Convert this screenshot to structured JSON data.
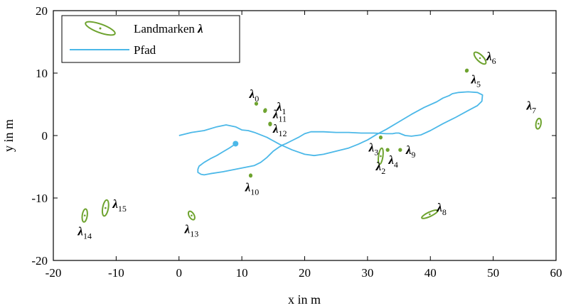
{
  "chart_data": {
    "type": "scatter",
    "xlabel": "x in m",
    "ylabel": "y in m",
    "xlim": [
      -20,
      60
    ],
    "ylim": [
      -20,
      20
    ],
    "x_ticks": [
      "-20",
      "-10",
      "0",
      "10",
      "20",
      "30",
      "40",
      "50",
      "60"
    ],
    "y_ticks": [
      "-20",
      "-10",
      "0",
      "10",
      "20"
    ],
    "grid": false,
    "legend_position": "top-left",
    "legend": {
      "landmarks": "Landmarken λ",
      "path": "Pfad"
    },
    "colors": {
      "landmarks": "#6ea32f",
      "path": "#4bb8e8"
    },
    "landmarks": [
      {
        "label": "λ",
        "sub": "0",
        "x": 12.3,
        "y": 5.1,
        "ellipse": [
          0.15,
          0.2,
          0
        ]
      },
      {
        "label": "λ",
        "sub": "1",
        "x": 13.7,
        "y": 4.0,
        "ellipse": [
          0.18,
          0.28,
          20
        ]
      },
      {
        "label": "λ",
        "sub": "2",
        "x": 32.1,
        "y": -3.3,
        "ellipse": [
          0.35,
          1.3,
          8
        ]
      },
      {
        "label": "λ",
        "sub": "3",
        "x": 32.1,
        "y": -0.3,
        "ellipse": [
          0.15,
          0.2,
          0
        ]
      },
      {
        "label": "λ",
        "sub": "4",
        "x": 33.2,
        "y": -2.3,
        "ellipse": [
          0.12,
          0.18,
          0
        ]
      },
      {
        "label": "λ",
        "sub": "5",
        "x": 45.8,
        "y": 10.4,
        "ellipse": [
          0.15,
          0.22,
          30
        ]
      },
      {
        "label": "λ",
        "sub": "6",
        "x": 47.9,
        "y": 12.4,
        "ellipse": [
          0.5,
          1.25,
          -45
        ]
      },
      {
        "label": "λ",
        "sub": "7",
        "x": 57.2,
        "y": 1.9,
        "ellipse": [
          0.4,
          0.85,
          10
        ]
      },
      {
        "label": "λ",
        "sub": "8",
        "x": 39.9,
        "y": -12.6,
        "ellipse": [
          1.4,
          0.35,
          -25
        ]
      },
      {
        "label": "λ",
        "sub": "9",
        "x": 35.2,
        "y": -2.3,
        "ellipse": [
          0.12,
          0.18,
          0
        ]
      },
      {
        "label": "λ",
        "sub": "10",
        "x": 11.4,
        "y": -6.4,
        "ellipse": [
          0.15,
          0.22,
          0
        ]
      },
      {
        "label": "λ",
        "sub": "11",
        "x": 14.5,
        "y": 1.9,
        "ellipse": [
          0.15,
          0.2,
          0
        ]
      },
      {
        "label": "λ",
        "sub": "12",
        "x": 14.5,
        "y": 1.8,
        "ellipse": [
          0.12,
          0.16,
          0
        ]
      },
      {
        "label": "λ",
        "sub": "13",
        "x": 2.0,
        "y": -12.8,
        "ellipse": [
          0.4,
          0.75,
          -30
        ]
      },
      {
        "label": "λ",
        "sub": "14",
        "x": -15.0,
        "y": -12.8,
        "ellipse": [
          0.4,
          1.05,
          8
        ]
      },
      {
        "label": "λ",
        "sub": "15",
        "x": -11.7,
        "y": -11.6,
        "ellipse": [
          0.45,
          1.3,
          10
        ]
      }
    ],
    "path": {
      "start_marker": {
        "x": 9.0,
        "y": -1.3
      },
      "points": [
        [
          0,
          0
        ],
        [
          2,
          0.5
        ],
        [
          4,
          0.8
        ],
        [
          6,
          1.4
        ],
        [
          7.5,
          1.7
        ],
        [
          9,
          1.4
        ],
        [
          10,
          0.9
        ],
        [
          11,
          0.8
        ],
        [
          12,
          0.5
        ],
        [
          14,
          -0.3
        ],
        [
          16,
          -1.4
        ],
        [
          18,
          -2.3
        ],
        [
          20,
          -3.0
        ],
        [
          21.5,
          -3.2
        ],
        [
          23,
          -3.0
        ],
        [
          25,
          -2.5
        ],
        [
          27,
          -2.0
        ],
        [
          28.5,
          -1.4
        ],
        [
          30,
          -0.7
        ],
        [
          31.5,
          0.2
        ],
        [
          33,
          1.0
        ],
        [
          35,
          2.2
        ],
        [
          37,
          3.4
        ],
        [
          39,
          4.5
        ],
        [
          41,
          5.4
        ],
        [
          42,
          6.0
        ],
        [
          43,
          6.4
        ],
        [
          43.5,
          6.7
        ],
        [
          44.5,
          6.9
        ],
        [
          46,
          7.0
        ],
        [
          47.5,
          6.9
        ],
        [
          48.3,
          6.5
        ],
        [
          48.2,
          5.5
        ],
        [
          47.5,
          4.8
        ],
        [
          46,
          4.0
        ],
        [
          44,
          2.9
        ],
        [
          42,
          1.9
        ],
        [
          40,
          0.8
        ],
        [
          38.5,
          0.1
        ],
        [
          37,
          -0.1
        ],
        [
          36,
          0.0
        ],
        [
          35,
          0.4
        ],
        [
          34.5,
          0.4
        ],
        [
          34,
          0.3
        ],
        [
          33,
          0.3
        ],
        [
          31,
          0.4
        ],
        [
          29,
          0.4
        ],
        [
          27,
          0.5
        ],
        [
          25,
          0.5
        ],
        [
          23,
          0.6
        ],
        [
          21,
          0.6
        ],
        [
          20,
          0.3
        ],
        [
          19,
          -0.3
        ],
        [
          18,
          -0.8
        ],
        [
          17,
          -1.3
        ],
        [
          16.5,
          -1.5
        ],
        [
          16,
          -1.8
        ],
        [
          15,
          -2.5
        ],
        [
          14,
          -3.5
        ],
        [
          13,
          -4.3
        ],
        [
          12,
          -4.8
        ],
        [
          11,
          -5.0
        ],
        [
          9,
          -5.4
        ],
        [
          7,
          -5.8
        ],
        [
          5,
          -6.1
        ],
        [
          4,
          -6.3
        ],
        [
          3.5,
          -6.2
        ],
        [
          3,
          -5.9
        ],
        [
          3,
          -5.4
        ],
        [
          3.2,
          -4.9
        ],
        [
          4,
          -4.3
        ],
        [
          5,
          -3.7
        ],
        [
          6,
          -3.2
        ],
        [
          7,
          -2.6
        ],
        [
          8,
          -2.0
        ],
        [
          8.6,
          -1.6
        ],
        [
          9.0,
          -1.3
        ]
      ]
    }
  }
}
